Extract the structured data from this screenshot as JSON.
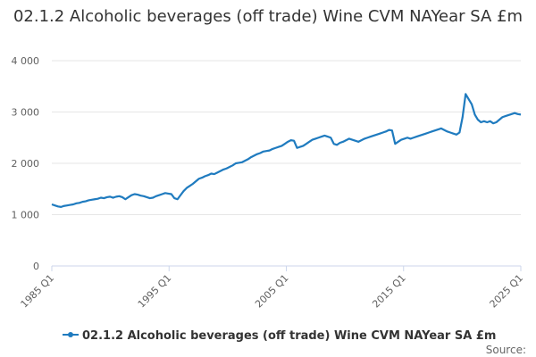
{
  "chart_data": {
    "type": "line",
    "title": "02.1.2 Alcoholic beverages (off trade) Wine CVM NAYear SA £m",
    "xlabel": "",
    "ylabel": "",
    "ylim": [
      0,
      4000
    ],
    "y_ticks": [
      0,
      1000,
      2000,
      3000,
      4000
    ],
    "y_tick_labels": [
      "0",
      "1 000",
      "2 000",
      "3 000",
      "4 000"
    ],
    "x_tick_labels": [
      "1985 Q1",
      "1995 Q1",
      "2005 Q1",
      "2015 Q1",
      "2025 Q1"
    ],
    "grid": true,
    "legend_position": "bottom",
    "series_color": "#1f7bbf",
    "series": [
      {
        "name": "02.1.2 Alcoholic beverages (off trade) Wine CVM NAYear SA £m",
        "x_start": "1985 Q1",
        "x_end": "2025 Q1",
        "values": [
          1200,
          1180,
          1160,
          1150,
          1170,
          1180,
          1190,
          1200,
          1220,
          1230,
          1250,
          1260,
          1280,
          1290,
          1300,
          1310,
          1330,
          1320,
          1340,
          1350,
          1330,
          1350,
          1360,
          1340,
          1300,
          1340,
          1380,
          1400,
          1390,
          1370,
          1360,
          1340,
          1320,
          1330,
          1360,
          1380,
          1400,
          1420,
          1410,
          1400,
          1320,
          1300,
          1380,
          1460,
          1520,
          1560,
          1600,
          1650,
          1700,
          1720,
          1750,
          1770,
          1800,
          1790,
          1820,
          1850,
          1880,
          1900,
          1930,
          1960,
          2000,
          2010,
          2020,
          2050,
          2080,
          2120,
          2150,
          2180,
          2200,
          2230,
          2240,
          2250,
          2280,
          2300,
          2320,
          2340,
          2380,
          2420,
          2450,
          2440,
          2300,
          2320,
          2340,
          2380,
          2420,
          2460,
          2480,
          2500,
          2520,
          2540,
          2520,
          2500,
          2380,
          2360,
          2400,
          2420,
          2450,
          2480,
          2460,
          2440,
          2420,
          2450,
          2480,
          2500,
          2520,
          2540,
          2560,
          2580,
          2600,
          2620,
          2650,
          2640,
          2380,
          2420,
          2460,
          2480,
          2500,
          2480,
          2500,
          2520,
          2540,
          2560,
          2580,
          2600,
          2620,
          2640,
          2660,
          2680,
          2650,
          2620,
          2600,
          2580,
          2560,
          2600,
          2900,
          3350,
          3250,
          3150,
          2950,
          2850,
          2800,
          2820,
          2800,
          2820,
          2780,
          2800,
          2850,
          2900,
          2920,
          2940,
          2960,
          2980,
          2960,
          2950
        ]
      }
    ],
    "source_label": "Source:"
  }
}
